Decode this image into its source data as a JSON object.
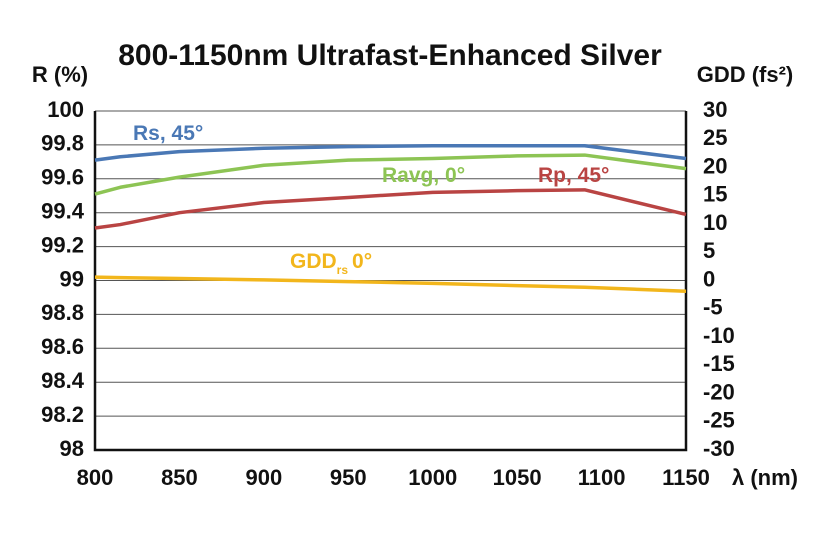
{
  "chart_data": {
    "type": "line",
    "title": "800-1150nm Ultrafast-Enhanced Silver",
    "y_label": "R (%)",
    "y2_label": "GDD (fs²)",
    "x_label": "λ (nm)",
    "x": [
      800,
      815,
      850,
      900,
      950,
      1000,
      1050,
      1090,
      1150
    ],
    "xlim": [
      800,
      1150
    ],
    "xticks": [
      800,
      850,
      900,
      950,
      1000,
      1050,
      1100,
      1150
    ],
    "ylim": [
      98,
      100
    ],
    "yticks": [
      98,
      98.2,
      98.4,
      98.6,
      98.8,
      99,
      99.2,
      99.4,
      99.6,
      99.8,
      100
    ],
    "y2lim": [
      -30,
      30
    ],
    "y2ticks": [
      -30,
      -25,
      -20,
      -15,
      -10,
      -5,
      0,
      5,
      10,
      15,
      20,
      25,
      30
    ],
    "grid": true,
    "series": [
      {
        "name": "Rs, 45°",
        "color": "#4a78b5",
        "values": [
          99.71,
          99.73,
          99.76,
          99.78,
          99.79,
          99.795,
          99.795,
          99.795,
          99.72
        ]
      },
      {
        "name": "Ravg, 0°",
        "color": "#8dc454",
        "values": [
          99.51,
          99.55,
          99.61,
          99.68,
          99.71,
          99.72,
          99.735,
          99.74,
          99.66
        ]
      },
      {
        "name": "Rp, 45°",
        "color": "#b94443",
        "values": [
          99.31,
          99.33,
          99.4,
          99.46,
          99.49,
          99.52,
          99.53,
          99.535,
          99.39
        ]
      },
      {
        "name": "GDD",
        "subscript": "rs",
        "suffix": "0°",
        "color": "#f2b61c",
        "axis": "y2",
        "values": [
          0.6,
          0.5,
          0.35,
          0.1,
          -0.2,
          -0.5,
          -0.9,
          -1.2,
          -1.9
        ]
      }
    ]
  }
}
